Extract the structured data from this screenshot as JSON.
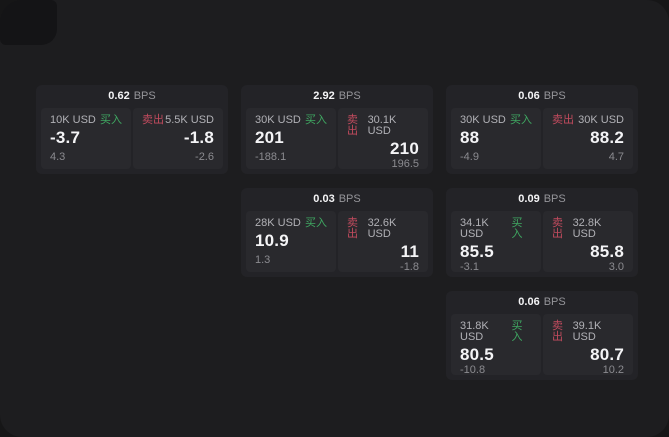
{
  "app": {
    "unit_label": "BPS",
    "buy_label": "买入",
    "sell_label": "卖出"
  },
  "colors": {
    "page_bg": "#161617",
    "panel_bg": "#1d1d1f",
    "notch_bg": "#141416",
    "card_bg": "#232327",
    "cell_bg": "#29292d",
    "text_primary": "#f4f4f6",
    "text_secondary": "#b1b1b6",
    "text_unit": "#95959a",
    "text_muted": "#8b8b90",
    "buy_green": "#3fa862",
    "sell_red": "#c24b5e"
  },
  "cards": [
    {
      "bps": "0.62",
      "row": 1,
      "col": 1,
      "buy": {
        "amount": "10K USD",
        "price": "-3.7",
        "delta": "4.3"
      },
      "sell": {
        "amount": "5.5K USD",
        "price": "-1.8",
        "delta": "-2.6"
      }
    },
    {
      "bps": "2.92",
      "row": 1,
      "col": 2,
      "buy": {
        "amount": "30K USD",
        "price": "201",
        "delta": "-188.1"
      },
      "sell": {
        "amount": "30.1K USD",
        "price": "210",
        "delta": "196.5"
      }
    },
    {
      "bps": "0.06",
      "row": 1,
      "col": 3,
      "buy": {
        "amount": "30K USD",
        "price": "88",
        "delta": "-4.9"
      },
      "sell": {
        "amount": "30K USD",
        "price": "88.2",
        "delta": "4.7"
      }
    },
    {
      "bps": "0.03",
      "row": 2,
      "col": 2,
      "buy": {
        "amount": "28K USD",
        "price": "10.9",
        "delta": "1.3"
      },
      "sell": {
        "amount": "32.6K USD",
        "price": "11",
        "delta": "-1.8"
      }
    },
    {
      "bps": "0.09",
      "row": 2,
      "col": 3,
      "buy": {
        "amount": "34.1K USD",
        "price": "85.5",
        "delta": "-3.1"
      },
      "sell": {
        "amount": "32.8K USD",
        "price": "85.8",
        "delta": "3.0"
      }
    },
    {
      "bps": "0.06",
      "row": 3,
      "col": 3,
      "buy": {
        "amount": "31.8K USD",
        "price": "80.5",
        "delta": "-10.8"
      },
      "sell": {
        "amount": "39.1K USD",
        "price": "80.7",
        "delta": "10.2"
      }
    }
  ]
}
